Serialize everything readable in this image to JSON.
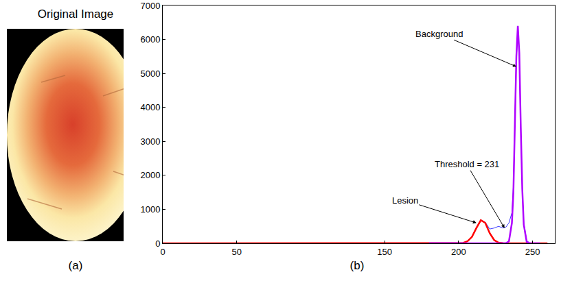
{
  "image_panel": {
    "title": "Original Image",
    "caption": "(a)"
  },
  "chart_data": {
    "type": "line",
    "caption": "(b)",
    "x": [
      0,
      50,
      100,
      150,
      180,
      190,
      195,
      200,
      203,
      206,
      209,
      212,
      215,
      218,
      221,
      224,
      227,
      230,
      232,
      234,
      236,
      237,
      238,
      239,
      240,
      241,
      242,
      243,
      244,
      246,
      248,
      250,
      255,
      260
    ],
    "series": [
      {
        "color": "#3a3aff",
        "values": [
          0,
          0,
          0,
          0,
          0,
          0,
          0,
          5,
          15,
          65,
          200,
          460,
          690,
          620,
          420,
          450,
          500,
          450,
          480,
          600,
          900,
          1700,
          3300,
          5400,
          6300,
          5500,
          3300,
          1600,
          600,
          80,
          10,
          0,
          0,
          0
        ]
      },
      {
        "color": "#ff0000",
        "values": [
          0,
          0,
          0,
          0,
          0,
          0,
          0,
          2,
          12,
          60,
          190,
          450,
          680,
          600,
          300,
          95,
          20,
          3,
          0,
          0,
          0,
          0,
          0,
          0,
          0,
          0,
          0,
          0,
          0,
          0,
          0,
          0,
          0,
          0
        ]
      },
      {
        "color": "#b000ff",
        "values": [
          null,
          null,
          null,
          null,
          0,
          0,
          0,
          0,
          0,
          0,
          0,
          0,
          0,
          0,
          0,
          0,
          0,
          0,
          5,
          60,
          600,
          1500,
          3300,
          5500,
          6400,
          5600,
          3400,
          1600,
          550,
          40,
          2,
          0,
          0,
          null
        ]
      }
    ],
    "xlim": [
      0,
      265
    ],
    "xticks": [
      0,
      50,
      150,
      200,
      250
    ],
    "ylim": [
      0,
      7000
    ],
    "yticks": [
      0,
      1000,
      2000,
      3000,
      4000,
      5000,
      6000,
      7000
    ],
    "grid": false,
    "annotations": [
      {
        "text": "Background",
        "x": 239,
        "y": 5200
      },
      {
        "text": "Lesion",
        "x": 212,
        "y": 600
      },
      {
        "text": "Threshold = 231",
        "x": 231,
        "y": 450
      }
    ]
  }
}
